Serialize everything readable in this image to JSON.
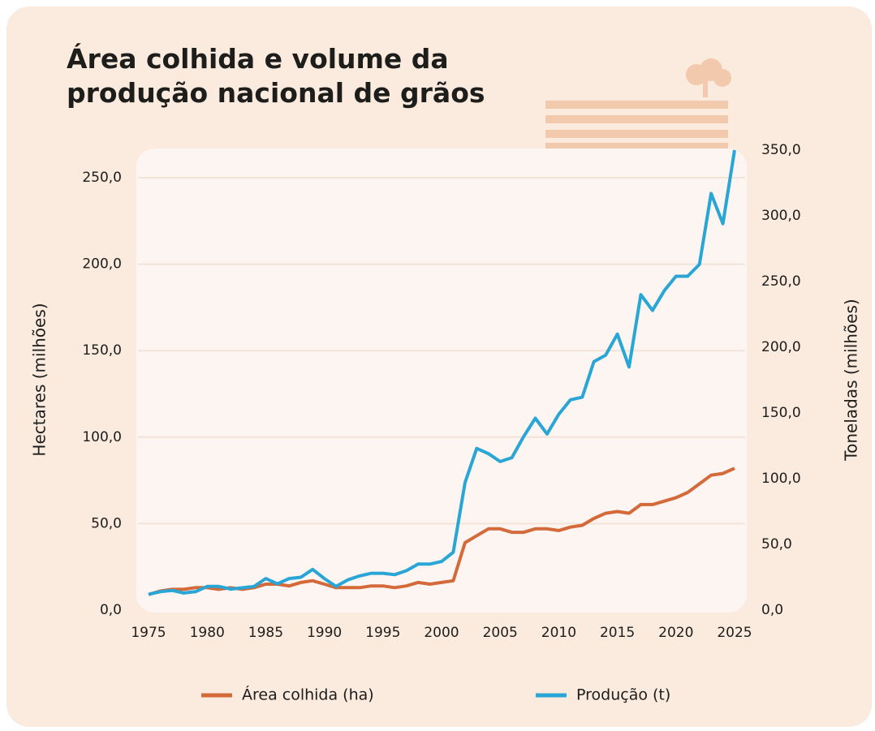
{
  "chart_data": {
    "type": "line",
    "title": "Área colhida e volume da produção nacional de grãos",
    "ylabel": "Hectares (milhões)",
    "y2label": "Toneladas (milhões)",
    "x": [
      1975,
      1976,
      1977,
      1978,
      1979,
      1980,
      1981,
      1982,
      1983,
      1984,
      1985,
      1986,
      1987,
      1988,
      1989,
      1990,
      1991,
      1992,
      1993,
      1994,
      1995,
      1996,
      1997,
      1998,
      1999,
      2000,
      2001,
      2002,
      2003,
      2004,
      2005,
      2006,
      2007,
      2008,
      2009,
      2010,
      2011,
      2012,
      2013,
      2014,
      2015,
      2016,
      2017,
      2018,
      2019,
      2020,
      2021,
      2022,
      2023,
      2024,
      2025
    ],
    "xlim": [
      1975,
      2025
    ],
    "xticks": [
      1975,
      1980,
      1985,
      1990,
      1995,
      2000,
      2005,
      2010,
      2015,
      2020,
      2025
    ],
    "ylim": [
      0,
      250
    ],
    "yticks": [
      {
        "value": 0,
        "label": "0,0"
      },
      {
        "value": 50,
        "label": "50,0"
      },
      {
        "value": 100,
        "label": "100,0"
      },
      {
        "value": 150,
        "label": "150,0"
      },
      {
        "value": 200,
        "label": "200,0"
      },
      {
        "value": 250,
        "label": "250,0"
      }
    ],
    "y2lim": [
      0,
      350
    ],
    "y2ticks": [
      {
        "value": 0,
        "label": "0,0"
      },
      {
        "value": 50,
        "label": "50,0"
      },
      {
        "value": 100,
        "label": "100,0"
      },
      {
        "value": 150,
        "label": "150,0"
      },
      {
        "value": 200,
        "label": "200,0"
      },
      {
        "value": 250,
        "label": "250,0"
      },
      {
        "value": 300,
        "label": "300,0"
      },
      {
        "value": 350,
        "label": "350,0"
      }
    ],
    "grid": true,
    "legend": "bottom",
    "series": [
      {
        "name": "Área colhida (ha)",
        "color": "#d4693a",
        "axis": "y",
        "values": [
          9,
          11,
          12,
          12,
          13,
          13,
          12,
          13,
          12,
          13,
          15,
          15,
          14,
          16,
          17,
          15,
          13,
          13,
          13,
          14,
          14,
          13,
          14,
          16,
          15,
          16,
          17,
          39,
          43,
          47,
          47,
          45,
          45,
          47,
          47,
          46,
          48,
          49,
          53,
          56,
          57,
          56,
          61,
          61,
          63,
          65,
          68,
          73,
          78,
          79,
          82
        ]
      },
      {
        "name": "Produção (t)",
        "color": "#2aa6d6",
        "axis": "y2",
        "values": [
          12,
          14,
          15,
          13,
          14,
          18,
          18,
          16,
          17,
          18,
          24,
          20,
          24,
          25,
          31,
          24,
          18,
          23,
          26,
          28,
          28,
          27,
          30,
          35,
          35,
          37,
          44,
          97,
          123,
          119,
          113,
          116,
          132,
          146,
          134,
          149,
          160,
          162,
          189,
          194,
          210,
          185,
          240,
          228,
          243,
          254,
          254,
          263,
          317,
          294,
          350
        ]
      }
    ]
  }
}
